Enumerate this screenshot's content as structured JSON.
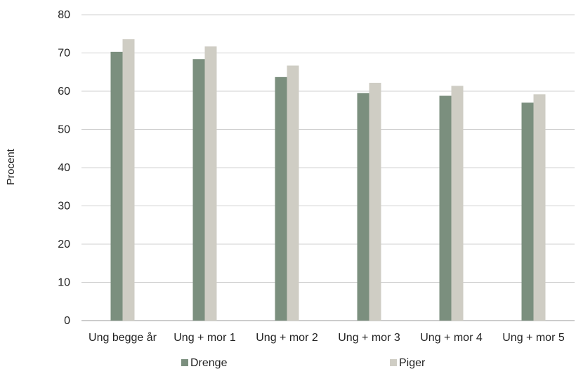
{
  "chart_data": {
    "type": "bar",
    "title": "",
    "xlabel": "",
    "ylabel": "Procent",
    "ylim": [
      0,
      80
    ],
    "yticks": [
      0,
      10,
      20,
      30,
      40,
      50,
      60,
      70,
      80
    ],
    "grid": true,
    "legend_position": "bottom",
    "categories": [
      "Ung begge år",
      "Ung + mor 1",
      "Ung + mor 2",
      "Ung + mor 3",
      "Ung + mor 4",
      "Ung + mor 5"
    ],
    "series": [
      {
        "name": "Drenge",
        "color": "#7b8f7e",
        "values": [
          70.3,
          68.4,
          63.7,
          59.5,
          58.8,
          57.0
        ]
      },
      {
        "name": "Piger",
        "color": "#cfcdc4",
        "values": [
          73.6,
          71.7,
          66.7,
          62.2,
          61.4,
          59.2
        ]
      }
    ]
  }
}
